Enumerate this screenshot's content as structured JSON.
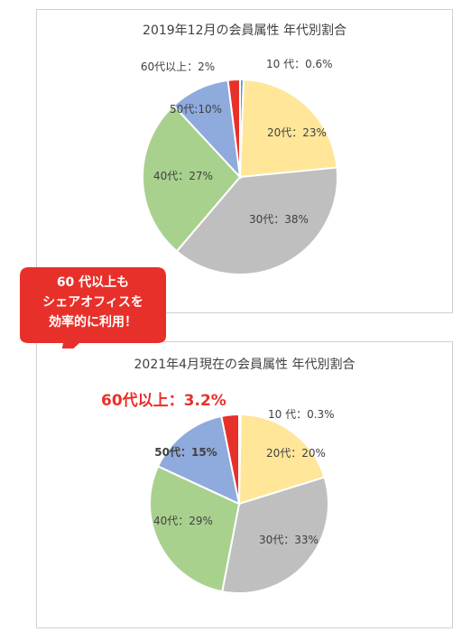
{
  "chart_data": [
    {
      "type": "pie",
      "title": "2019年12月の会員属性 年代別割合",
      "categories": [
        "10代",
        "20代",
        "30代",
        "40代",
        "50代",
        "60代以上"
      ],
      "values": [
        0.6,
        23,
        38,
        27,
        10,
        2
      ],
      "labels": [
        "10 代：0.6%",
        "20代：23%",
        "30代：38%",
        "40代：27%",
        "50代:10%",
        "60代以上：2%"
      ],
      "colors": [
        "#5b9bd5",
        "#ffe699",
        "#bfbfbf",
        "#a9d18e",
        "#8faadc",
        "#e8302a"
      ]
    },
    {
      "type": "pie",
      "title": "2021年4月現在の会員属性 年代別割合",
      "categories": [
        "10代",
        "20代",
        "30代",
        "40代",
        "50代",
        "60代以上"
      ],
      "values": [
        0.3,
        20,
        33,
        29,
        15,
        3.2
      ],
      "labels": [
        "10 代：0.3%",
        "20代：20%",
        "30代：33%",
        "40代：29%",
        "50代：15%",
        ""
      ],
      "colors": [
        "#5b9bd5",
        "#ffe699",
        "#bfbfbf",
        "#a9d18e",
        "#8faadc",
        "#e8302a"
      ]
    }
  ],
  "callout": {
    "lines": [
      "60 代以上も",
      "シェアオフィスを",
      "効率的に利用！"
    ],
    "color": "#e8302a"
  },
  "highlight": {
    "text": "60代以上：3.2%",
    "color": "#e8302a"
  }
}
